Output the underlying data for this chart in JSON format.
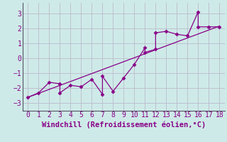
{
  "title": "",
  "xlabel": "Windchill (Refroidissement éolien,°C)",
  "ylabel": "",
  "background_color": "#ceeae8",
  "line_color": "#880088",
  "marker_color": "#880088",
  "grid_color": "#bbbbcc",
  "xlim": [
    -0.5,
    18.5
  ],
  "ylim": [
    -3.5,
    3.7
  ],
  "xticks": [
    0,
    1,
    2,
    3,
    4,
    5,
    6,
    7,
    8,
    9,
    10,
    11,
    12,
    13,
    14,
    15,
    16,
    17,
    18
  ],
  "yticks": [
    -3,
    -2,
    -1,
    0,
    1,
    2,
    3
  ],
  "scatter_x": [
    0,
    1,
    2,
    3,
    3,
    4,
    5,
    6,
    7,
    7,
    8,
    9,
    10,
    11,
    11,
    12,
    12,
    13,
    14,
    15,
    16,
    16,
    17,
    18
  ],
  "scatter_y": [
    -2.6,
    -2.3,
    -1.6,
    -1.7,
    -2.3,
    -1.8,
    -1.9,
    -1.4,
    -2.4,
    -1.2,
    -2.2,
    -1.3,
    -0.4,
    0.7,
    0.4,
    0.6,
    1.7,
    1.8,
    1.6,
    1.5,
    3.1,
    2.1,
    2.1,
    2.1
  ],
  "trend_x": [
    0,
    18
  ],
  "trend_y": [
    -2.6,
    2.15
  ],
  "font_family": "monospace",
  "xlabel_fontsize": 7.5,
  "tick_fontsize": 7
}
